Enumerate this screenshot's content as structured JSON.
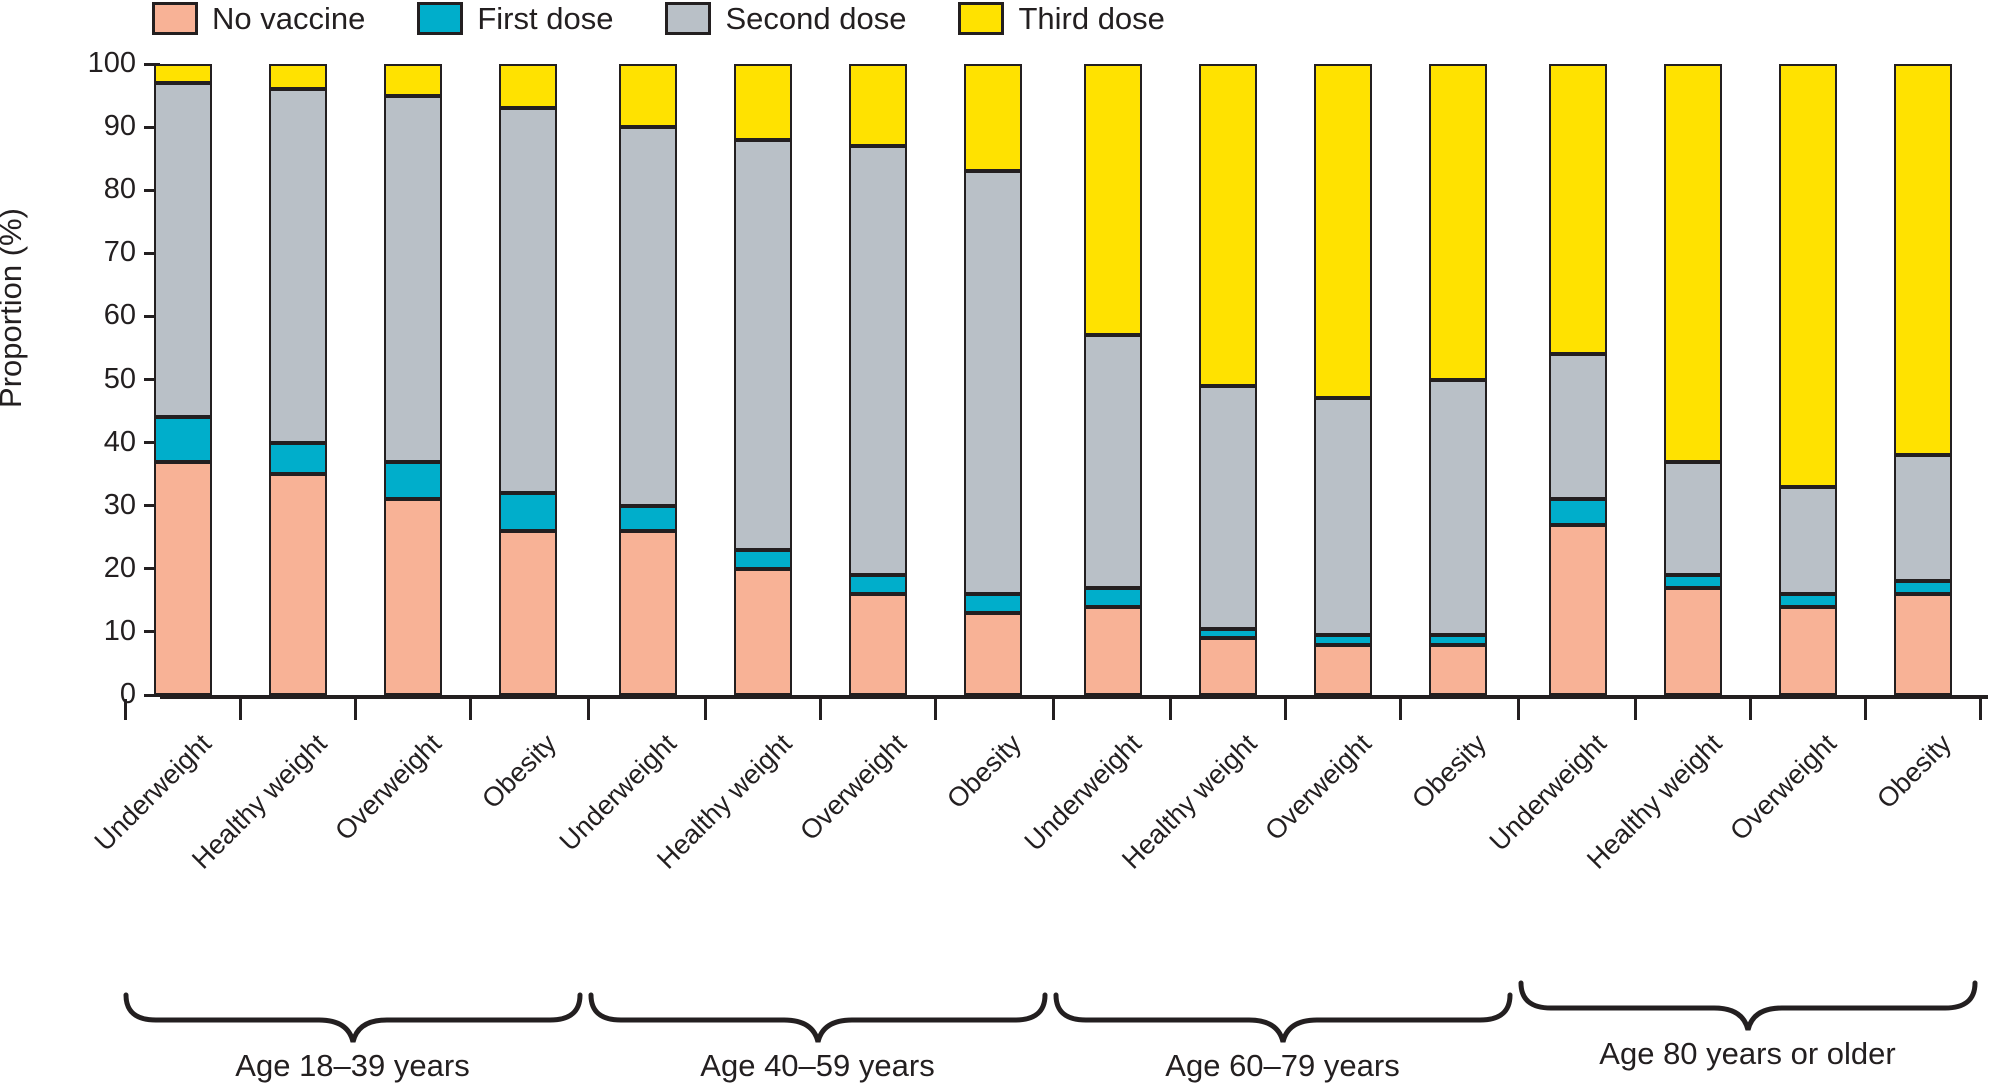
{
  "legend": {
    "items": [
      {
        "label": "No vaccine",
        "color": "#F8B296"
      },
      {
        "label": "First dose",
        "color": "#00AECB"
      },
      {
        "label": "Second dose",
        "color": "#B9C0C7"
      },
      {
        "label": "Third dose",
        "color": "#FFE200"
      }
    ]
  },
  "y_axis": {
    "title": "Proportion (%)",
    "tick_labels": [
      "0",
      "10",
      "20",
      "30",
      "40",
      "50",
      "60",
      "70",
      "80",
      "90",
      "100"
    ]
  },
  "chart_data": {
    "type": "bar",
    "stacked": true,
    "title": "",
    "xlabel": "",
    "ylabel": "Proportion (%)",
    "ylim": [
      0,
      100
    ],
    "ytick_step": 10,
    "grid": false,
    "legend_position": "top-left",
    "series_names": [
      "No vaccine",
      "First dose",
      "Second dose",
      "Third dose"
    ],
    "series_colors": [
      "#F8B296",
      "#00AECB",
      "#B9C0C7",
      "#FFE200"
    ],
    "outline_color": "#231F20",
    "groups": [
      {
        "label": "Age 18–39 years",
        "categories": [
          "Underweight",
          "Healthy weight",
          "Overweight",
          "Obesity"
        ],
        "values": [
          [
            37,
            7,
            53,
            3
          ],
          [
            35,
            5,
            56,
            4
          ],
          [
            31,
            6,
            58,
            5
          ],
          [
            26,
            6,
            61,
            7
          ]
        ]
      },
      {
        "label": "Age 40–59 years",
        "categories": [
          "Underweight",
          "Healthy weight",
          "Overweight",
          "Obesity"
        ],
        "values": [
          [
            26,
            4,
            60,
            10
          ],
          [
            20,
            3,
            65,
            12
          ],
          [
            16,
            3,
            68,
            13
          ],
          [
            13,
            3,
            67,
            17
          ]
        ]
      },
      {
        "label": "Age 60–79 years",
        "categories": [
          "Underweight",
          "Healthy weight",
          "Overweight",
          "Obesity"
        ],
        "values": [
          [
            14,
            3,
            40,
            43
          ],
          [
            9,
            1.5,
            38.5,
            51
          ],
          [
            8,
            1.5,
            37.5,
            53
          ],
          [
            8,
            1.5,
            40.5,
            50
          ]
        ]
      },
      {
        "label": "Age 80 years or older",
        "categories": [
          "Underweight",
          "Healthy weight",
          "Overweight",
          "Obesity"
        ],
        "values": [
          [
            27,
            4,
            23,
            46
          ],
          [
            17,
            2,
            18,
            63
          ],
          [
            14,
            2,
            17,
            67
          ],
          [
            16,
            2,
            20,
            62
          ]
        ]
      }
    ]
  }
}
